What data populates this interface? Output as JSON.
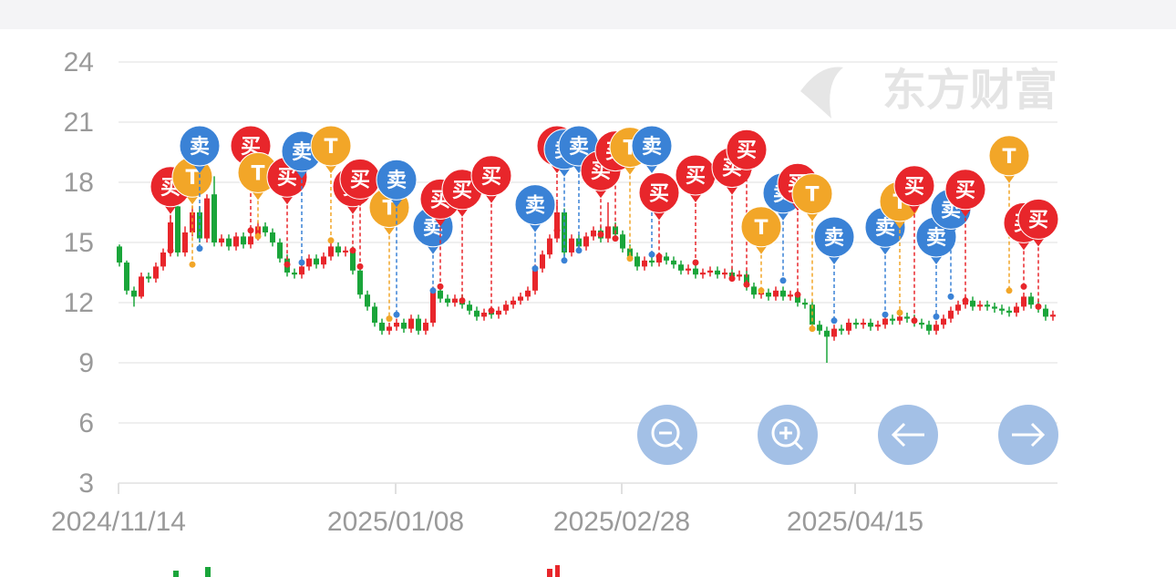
{
  "chart_data": {
    "type": "candlestick",
    "watermark": "东方财富",
    "ylim": [
      3,
      24
    ],
    "yticks": [
      3,
      6,
      9,
      12,
      15,
      18,
      21,
      24
    ],
    "grid": true,
    "xlim": [
      0,
      129
    ],
    "xticks": [
      {
        "value": 0,
        "label": "2024/11/14"
      },
      {
        "value": 38,
        "label": "2025/01/08"
      },
      {
        "value": 69,
        "label": "2025/02/28"
      },
      {
        "value": 101,
        "label": "2025/04/15"
      }
    ],
    "up_color": "#e8262b",
    "down_color": "#1aa53a",
    "candles": [
      [
        14.8,
        14.0,
        13.8,
        14.9
      ],
      [
        14.0,
        12.6,
        12.4,
        14.1
      ],
      [
        12.6,
        12.3,
        11.8,
        12.8
      ],
      [
        12.3,
        13.3,
        12.2,
        13.5
      ],
      [
        13.3,
        13.2,
        13.0,
        13.5
      ],
      [
        13.2,
        13.8,
        13.0,
        14.0
      ],
      [
        13.8,
        14.5,
        13.6,
        14.7
      ],
      [
        14.5,
        16.0,
        14.3,
        16.3
      ],
      [
        16.8,
        14.5,
        14.3,
        17.5
      ],
      [
        14.5,
        15.5,
        14.3,
        15.8
      ],
      [
        15.5,
        16.5,
        15.3,
        16.8
      ],
      [
        16.5,
        15.2,
        15.0,
        16.8
      ],
      [
        15.2,
        17.2,
        15.0,
        17.4
      ],
      [
        17.4,
        15.0,
        14.8,
        18.3
      ],
      [
        15.0,
        15.2,
        14.8,
        15.4
      ],
      [
        15.2,
        14.8,
        14.6,
        15.4
      ],
      [
        14.8,
        15.3,
        14.6,
        15.5
      ],
      [
        15.3,
        14.9,
        14.7,
        15.5
      ],
      [
        14.9,
        15.3,
        14.7,
        15.5
      ],
      [
        15.3,
        15.8,
        15.1,
        16.0
      ],
      [
        15.8,
        15.5,
        15.3,
        16.0
      ],
      [
        15.5,
        15.0,
        14.8,
        15.7
      ],
      [
        15.0,
        14.2,
        14.0,
        15.2
      ],
      [
        14.2,
        13.5,
        13.3,
        14.4
      ],
      [
        13.5,
        13.4,
        13.2,
        13.7
      ],
      [
        13.4,
        13.8,
        13.2,
        14.0
      ],
      [
        13.8,
        14.2,
        13.6,
        14.4
      ],
      [
        14.2,
        13.9,
        13.7,
        14.4
      ],
      [
        13.9,
        14.3,
        13.7,
        14.5
      ],
      [
        14.3,
        14.8,
        14.1,
        15.0
      ],
      [
        14.8,
        14.5,
        14.3,
        15.0
      ],
      [
        14.5,
        14.6,
        14.3,
        14.8
      ],
      [
        14.6,
        13.6,
        13.4,
        14.8
      ],
      [
        13.6,
        12.4,
        12.2,
        13.8
      ],
      [
        12.4,
        11.8,
        11.6,
        12.6
      ],
      [
        11.8,
        11.0,
        10.8,
        12.0
      ],
      [
        11.0,
        10.6,
        10.4,
        11.2
      ],
      [
        10.6,
        10.8,
        10.4,
        11.0
      ],
      [
        10.8,
        11.0,
        10.6,
        11.2
      ],
      [
        11.0,
        10.7,
        10.5,
        11.2
      ],
      [
        10.7,
        11.2,
        10.5,
        11.4
      ],
      [
        11.2,
        10.6,
        10.4,
        11.4
      ],
      [
        10.6,
        11.0,
        10.4,
        11.2
      ],
      [
        11.0,
        12.6,
        10.8,
        12.8
      ],
      [
        12.6,
        12.2,
        12.0,
        12.8
      ],
      [
        12.2,
        12.0,
        11.8,
        12.4
      ],
      [
        12.0,
        12.2,
        11.8,
        12.4
      ],
      [
        12.2,
        11.9,
        11.7,
        12.4
      ],
      [
        11.9,
        11.6,
        11.4,
        12.1
      ],
      [
        11.6,
        11.3,
        11.1,
        11.8
      ],
      [
        11.3,
        11.5,
        11.1,
        11.7
      ],
      [
        11.5,
        11.4,
        11.2,
        11.7
      ],
      [
        11.4,
        11.6,
        11.2,
        11.8
      ],
      [
        11.6,
        11.9,
        11.4,
        12.1
      ],
      [
        11.9,
        12.1,
        11.7,
        12.3
      ],
      [
        12.1,
        12.3,
        11.9,
        12.5
      ],
      [
        12.3,
        12.6,
        12.1,
        12.8
      ],
      [
        12.6,
        13.7,
        12.4,
        13.9
      ],
      [
        13.7,
        14.4,
        13.5,
        14.6
      ],
      [
        14.4,
        15.2,
        14.2,
        15.4
      ],
      [
        15.2,
        16.5,
        15.0,
        17.0
      ],
      [
        16.5,
        14.5,
        14.3,
        16.7
      ],
      [
        14.5,
        15.2,
        14.3,
        15.4
      ],
      [
        15.2,
        14.8,
        14.6,
        15.4
      ],
      [
        14.8,
        15.3,
        14.6,
        15.5
      ],
      [
        15.3,
        15.6,
        15.1,
        15.8
      ],
      [
        15.6,
        15.2,
        15.0,
        15.8
      ],
      [
        15.2,
        15.8,
        15.0,
        17.0
      ],
      [
        15.8,
        15.4,
        15.2,
        16.0
      ],
      [
        15.4,
        14.7,
        14.5,
        15.6
      ],
      [
        14.7,
        14.3,
        14.1,
        14.9
      ],
      [
        14.3,
        13.8,
        13.6,
        14.5
      ],
      [
        13.8,
        14.1,
        13.6,
        14.3
      ],
      [
        14.1,
        14.0,
        13.8,
        14.3
      ],
      [
        14.0,
        14.3,
        13.8,
        14.5
      ],
      [
        14.3,
        14.1,
        13.9,
        14.5
      ],
      [
        14.1,
        13.9,
        13.7,
        14.3
      ],
      [
        13.9,
        13.6,
        13.4,
        14.1
      ],
      [
        13.6,
        13.7,
        13.4,
        13.9
      ],
      [
        13.7,
        13.4,
        13.2,
        13.9
      ],
      [
        13.4,
        13.5,
        13.2,
        13.7
      ],
      [
        13.5,
        13.6,
        13.3,
        13.8
      ],
      [
        13.6,
        13.4,
        13.2,
        13.8
      ],
      [
        13.4,
        13.5,
        13.2,
        13.7
      ],
      [
        13.5,
        13.3,
        13.1,
        13.7
      ],
      [
        13.3,
        13.4,
        13.1,
        13.6
      ],
      [
        13.4,
        12.8,
        12.6,
        13.6
      ],
      [
        12.8,
        12.4,
        12.2,
        13.0
      ],
      [
        12.4,
        12.5,
        12.2,
        12.7
      ],
      [
        12.5,
        12.3,
        12.1,
        12.7
      ],
      [
        12.3,
        12.6,
        12.1,
        12.8
      ],
      [
        12.6,
        12.3,
        12.1,
        12.8
      ],
      [
        12.3,
        12.4,
        12.1,
        12.6
      ],
      [
        12.4,
        12.0,
        11.8,
        12.6
      ],
      [
        12.0,
        11.9,
        11.7,
        12.2
      ],
      [
        11.9,
        10.9,
        10.7,
        12.1
      ],
      [
        10.9,
        10.6,
        10.4,
        11.1
      ],
      [
        10.6,
        10.3,
        9.0,
        10.8
      ],
      [
        10.3,
        10.7,
        10.1,
        10.9
      ],
      [
        10.7,
        10.6,
        10.4,
        10.9
      ],
      [
        10.6,
        11.0,
        10.4,
        11.2
      ],
      [
        11.0,
        10.9,
        10.7,
        11.2
      ],
      [
        10.9,
        11.0,
        10.7,
        11.2
      ],
      [
        11.0,
        10.8,
        10.6,
        11.2
      ],
      [
        10.8,
        10.9,
        10.6,
        11.1
      ],
      [
        10.9,
        11.2,
        10.7,
        11.4
      ],
      [
        11.2,
        11.1,
        10.9,
        11.4
      ],
      [
        11.1,
        11.3,
        10.9,
        11.5
      ],
      [
        11.3,
        11.2,
        11.0,
        11.5
      ],
      [
        11.2,
        11.0,
        10.8,
        11.4
      ],
      [
        11.0,
        10.9,
        10.7,
        11.2
      ],
      [
        10.9,
        10.6,
        10.4,
        11.1
      ],
      [
        10.6,
        10.9,
        10.4,
        11.1
      ],
      [
        10.9,
        11.2,
        10.7,
        11.4
      ],
      [
        11.2,
        11.6,
        11.0,
        11.8
      ],
      [
        11.6,
        11.9,
        11.4,
        12.1
      ],
      [
        11.9,
        12.1,
        11.7,
        12.3
      ],
      [
        12.1,
        11.8,
        11.6,
        12.3
      ],
      [
        11.8,
        11.9,
        11.6,
        12.1
      ],
      [
        11.9,
        11.8,
        11.6,
        12.1
      ],
      [
        11.8,
        11.7,
        11.5,
        12.0
      ],
      [
        11.7,
        11.6,
        11.4,
        11.9
      ],
      [
        11.6,
        11.5,
        11.3,
        11.8
      ],
      [
        11.5,
        11.8,
        11.3,
        12.0
      ],
      [
        11.8,
        12.3,
        11.6,
        12.5
      ],
      [
        12.3,
        11.9,
        11.7,
        12.5
      ],
      [
        11.9,
        11.7,
        11.5,
        12.1
      ],
      [
        11.7,
        11.3,
        11.1,
        11.9
      ],
      [
        11.3,
        11.4,
        11.1,
        11.6
      ]
    ],
    "markers": [
      {
        "label": "买",
        "color": "#e8262b",
        "x": 7,
        "price": 14.6
      },
      {
        "label": "T",
        "color": "#f2a628",
        "x": 10,
        "price": 13.9
      },
      {
        "label": "卖",
        "color": "#3a82d6",
        "x": 11,
        "price": 14.7
      },
      {
        "label": "买",
        "color": "#e8262b",
        "x": 18,
        "price": 15.6
      },
      {
        "label": "T",
        "color": "#f2a628",
        "x": 19,
        "price": 15.3
      },
      {
        "label": "买",
        "color": "#e8262b",
        "x": 23,
        "price": 13.9
      },
      {
        "label": "卖",
        "color": "#3a82d6",
        "x": 25,
        "price": 14.0
      },
      {
        "label": "T",
        "color": "#f2a628",
        "x": 29,
        "price": 15.1
      },
      {
        "label": "买",
        "color": "#e8262b",
        "x": 32,
        "price": 14.6
      },
      {
        "label": "买",
        "color": "#e8262b",
        "x": 33,
        "price": 13.8
      },
      {
        "label": "T",
        "color": "#f2a628",
        "x": 37,
        "price": 11.2
      },
      {
        "label": "卖",
        "color": "#3a82d6",
        "x": 38,
        "price": 11.4
      },
      {
        "label": "卖",
        "color": "#3a82d6",
        "x": 43,
        "price": 12.6
      },
      {
        "label": "买",
        "color": "#e8262b",
        "x": 44,
        "price": 12.8
      },
      {
        "label": "买",
        "color": "#e8262b",
        "x": 47,
        "price": 12.1
      },
      {
        "label": "买",
        "color": "#e8262b",
        "x": 51,
        "price": 11.6
      },
      {
        "label": "卖",
        "color": "#3a82d6",
        "x": 57,
        "price": 13.7
      },
      {
        "label": "买",
        "color": "#e8262b",
        "x": 60,
        "price": 15.6
      },
      {
        "label": "卖",
        "color": "#3a82d6",
        "x": 61,
        "price": 14.1
      },
      {
        "label": "卖",
        "color": "#3a82d6",
        "x": 63,
        "price": 14.6
      },
      {
        "label": "买",
        "color": "#e8262b",
        "x": 66,
        "price": 15.4
      },
      {
        "label": "买",
        "color": "#e8262b",
        "x": 68,
        "price": 15.2
      },
      {
        "label": "T",
        "color": "#f2a628",
        "x": 70,
        "price": 14.2
      },
      {
        "label": "卖",
        "color": "#3a82d6",
        "x": 73,
        "price": 14.4
      },
      {
        "label": "买",
        "color": "#e8262b",
        "x": 74,
        "price": 14.3
      },
      {
        "label": "买",
        "color": "#e8262b",
        "x": 79,
        "price": 14.0
      },
      {
        "label": "买",
        "color": "#e8262b",
        "x": 84,
        "price": 13.2
      },
      {
        "label": "买",
        "color": "#e8262b",
        "x": 86,
        "price": 12.9
      },
      {
        "label": "T",
        "color": "#f2a628",
        "x": 88,
        "price": 12.6
      },
      {
        "label": "卖",
        "color": "#3a82d6",
        "x": 91,
        "price": 13.1
      },
      {
        "label": "买",
        "color": "#e8262b",
        "x": 93,
        "price": 12.4
      },
      {
        "label": "T",
        "color": "#f2a628",
        "x": 95,
        "price": 10.7
      },
      {
        "label": "卖",
        "color": "#3a82d6",
        "x": 98,
        "price": 11.1
      },
      {
        "label": "卖",
        "color": "#3a82d6",
        "x": 105,
        "price": 11.4
      },
      {
        "label": "T",
        "color": "#f2a628",
        "x": 107,
        "price": 11.5
      },
      {
        "label": "买",
        "color": "#e8262b",
        "x": 109,
        "price": 11.1
      },
      {
        "label": "卖",
        "color": "#3a82d6",
        "x": 112,
        "price": 11.3
      },
      {
        "label": "卖",
        "color": "#3a82d6",
        "x": 114,
        "price": 12.3
      },
      {
        "label": "买",
        "color": "#e8262b",
        "x": 116,
        "price": 12.1
      },
      {
        "label": "T",
        "color": "#f2a628",
        "x": 122,
        "price": 12.6
      },
      {
        "label": "买",
        "color": "#e8262b",
        "x": 124,
        "price": 12.8
      },
      {
        "label": "买",
        "color": "#e8262b",
        "x": 126,
        "price": 11.8
      }
    ]
  }
}
